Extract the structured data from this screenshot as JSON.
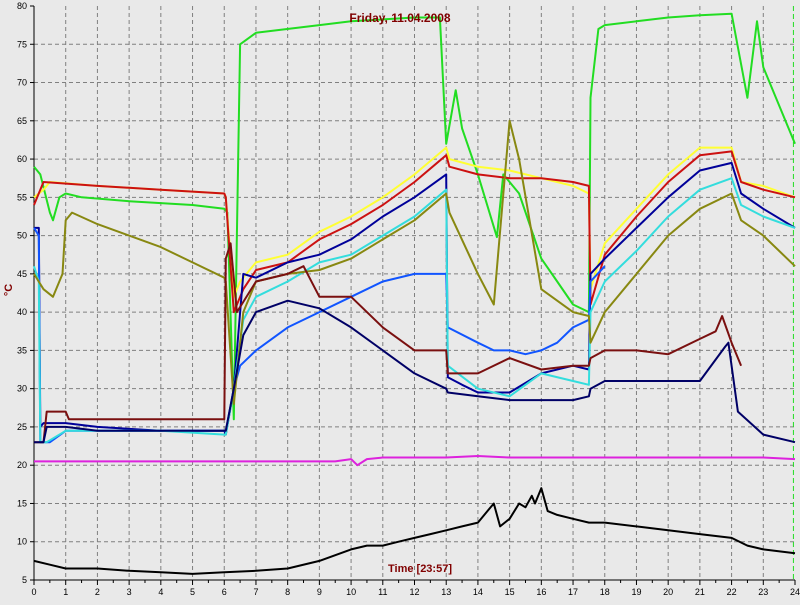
{
  "chart_data": {
    "type": "line",
    "title": "Friday, 11.04.2008",
    "xlabel": "Time [23:57]",
    "ylabel": "°C",
    "xlim": [
      0,
      24
    ],
    "ylim": [
      5,
      80
    ],
    "x_ticks": [
      "0",
      "1",
      "2",
      "3",
      "4",
      "5",
      "6",
      "7",
      "8",
      "9",
      "10",
      "11",
      "12",
      "13",
      "14",
      "15",
      "16",
      "17",
      "18",
      "19",
      "20",
      "21",
      "22",
      "23",
      "24"
    ],
    "y_ticks": [
      "5",
      "10",
      "15",
      "20",
      "25",
      "30",
      "35",
      "40",
      "45",
      "50",
      "55",
      "60",
      "65",
      "70",
      "75",
      "80"
    ],
    "grid": true,
    "grid_style": "dashed",
    "series": [
      {
        "color": "#22dd22",
        "x": [
          0,
          0.2,
          0.5,
          0.6,
          0.8,
          1,
          1.5,
          3,
          5,
          6,
          6.1,
          6.3,
          6.5,
          7,
          9,
          10,
          12,
          12.8,
          13,
          13.3,
          13.5,
          14,
          14.6,
          14.8,
          15,
          15.3,
          16,
          16.5,
          17,
          17.5,
          17.55,
          17.8,
          18,
          19,
          20,
          21,
          22,
          22.5,
          22.8,
          23,
          24
        ],
        "y": [
          59,
          58,
          53,
          52,
          55,
          55.5,
          55,
          54.5,
          54,
          53.5,
          53,
          26,
          75,
          76.5,
          77.5,
          78,
          78.5,
          78.5,
          62,
          69,
          64,
          58,
          49.8,
          58,
          57,
          55.5,
          47,
          44,
          41,
          40,
          68,
          77,
          77.5,
          78,
          78.5,
          78.8,
          79,
          68,
          78,
          72,
          62
        ]
      },
      {
        "color": "#ffff33",
        "x": [
          0,
          0.3,
          0.5,
          2,
          4,
          6,
          6.05,
          6.3,
          6.5,
          7,
          8,
          9,
          10,
          11,
          12,
          13,
          13.1,
          14,
          15,
          16,
          17,
          17.5,
          17.55,
          18,
          19,
          20,
          21,
          22,
          22.3,
          23,
          24
        ],
        "y": [
          55,
          56,
          57,
          56.5,
          56,
          55.5,
          55,
          42,
          44,
          46.5,
          47.5,
          50.5,
          52.5,
          55,
          58,
          61.5,
          60,
          59,
          58.5,
          57.5,
          56.5,
          55.5,
          43,
          49,
          53.5,
          58,
          61.5,
          61.5,
          57,
          56.5,
          55
        ]
      },
      {
        "color": "#cc1111",
        "x": [
          0,
          0.3,
          2,
          4,
          6,
          6.05,
          6.3,
          6.6,
          7,
          8,
          9,
          10,
          11,
          12,
          13,
          13.1,
          14,
          15,
          16,
          17,
          17.5,
          17.55,
          18,
          19,
          20,
          21,
          22,
          22.3,
          23,
          24
        ],
        "y": [
          54,
          57,
          56.5,
          56,
          55.5,
          55,
          40,
          43,
          45.5,
          46.5,
          49.5,
          51.5,
          54,
          57,
          60.5,
          59,
          58,
          57.5,
          57.5,
          57,
          56.5,
          41,
          47.5,
          52.5,
          57,
          60.5,
          61,
          57,
          56,
          55
        ]
      },
      {
        "color": "#000099",
        "x": [
          0,
          0.15,
          0.2,
          0.3,
          1,
          2,
          4,
          6,
          6.05,
          6.3,
          6.6,
          7,
          8,
          9,
          10,
          11,
          12,
          13,
          13.05,
          13.5,
          14,
          15,
          16,
          17,
          17.5,
          17.55,
          18,
          19,
          20,
          21,
          22,
          22.3,
          23,
          24
        ],
        "y": [
          51,
          51,
          25,
          25.5,
          25.5,
          25,
          24.5,
          24.5,
          24,
          30,
          45,
          44.5,
          46.5,
          47.5,
          49.5,
          52.5,
          55,
          58,
          31.5,
          30.5,
          29.5,
          29.5,
          32,
          33,
          32.5,
          45,
          47,
          51,
          55,
          58.5,
          59.5,
          55.5,
          53.5,
          51
        ]
      },
      {
        "color": "#1155ff",
        "x": [
          0,
          0.15,
          0.2,
          0.5,
          1,
          2,
          4,
          6,
          6.05,
          6.3,
          6.5,
          7,
          8,
          9,
          10,
          11,
          12,
          13,
          13.05,
          14,
          14.5,
          15,
          15.5,
          16,
          16.5,
          17,
          17.5,
          17.55,
          18
        ],
        "y": [
          51,
          50,
          23,
          23,
          24.5,
          24.5,
          24.5,
          24.5,
          24.5,
          30,
          33,
          35,
          38,
          40,
          42,
          44,
          45,
          45,
          38,
          36,
          35,
          35,
          34.5,
          35,
          36,
          38,
          39,
          44,
          46
        ]
      },
      {
        "color": "#33dddd",
        "x": [
          0,
          0.15,
          0.2,
          0.4,
          1,
          2,
          4,
          6,
          6.05,
          6.3,
          6.6,
          7,
          8,
          9,
          10,
          11,
          12,
          13,
          13.05,
          14,
          15,
          16,
          17,
          17.5,
          17.55,
          18,
          19,
          20,
          21,
          22,
          22.3,
          23,
          24
        ],
        "y": [
          46,
          44,
          23,
          23,
          24.5,
          24.5,
          24.5,
          24,
          24,
          30,
          39,
          42,
          44,
          46.5,
          47.5,
          50,
          52.5,
          56,
          33,
          30,
          29,
          32,
          31,
          30.5,
          40,
          44,
          48,
          52.5,
          56,
          57.5,
          54,
          52.5,
          51
        ]
      },
      {
        "color": "#888811",
        "x": [
          0,
          0.3,
          0.6,
          0.9,
          1,
          1.2,
          2,
          3,
          4,
          5,
          6,
          6.05,
          6.3,
          6.6,
          7,
          8,
          9,
          10,
          11,
          12,
          13,
          13.1,
          14,
          14.5,
          15,
          15.3,
          16,
          17,
          17.5,
          17.55,
          18,
          19,
          20,
          21,
          22,
          22.3,
          23,
          24
        ],
        "y": [
          45,
          43,
          42,
          45,
          52,
          53,
          51.5,
          50,
          48.5,
          46.5,
          44.5,
          44,
          28,
          40,
          44,
          45,
          45.5,
          47,
          49.5,
          52,
          55.5,
          53,
          45,
          41,
          65,
          60,
          43,
          40,
          39.5,
          36,
          40,
          45,
          50,
          53.5,
          55.5,
          52,
          50,
          46
        ]
      },
      {
        "color": "#7a1010",
        "x": [
          0,
          0.3,
          0.4,
          1,
          1.1,
          2,
          4,
          6,
          6.05,
          6.2,
          6.4,
          7,
          8,
          8.5,
          9,
          10,
          11,
          12,
          13,
          13.05,
          14,
          15,
          16,
          17,
          17.5,
          17.55,
          18,
          19,
          20,
          21,
          21.5,
          21.7,
          22,
          22.3
        ],
        "y": [
          23,
          23,
          27,
          27,
          26,
          26,
          26,
          26,
          47,
          49,
          40,
          44,
          45,
          46,
          42,
          42,
          38,
          35,
          35,
          32,
          32,
          34,
          32.5,
          33,
          33,
          34,
          35,
          35,
          34.5,
          36.5,
          37.5,
          39.5,
          36,
          33
        ]
      },
      {
        "color": "#000066",
        "x": [
          0,
          0.3,
          0.4,
          1,
          2,
          4,
          6,
          6.05,
          6.3,
          6.6,
          7,
          8,
          9,
          10,
          11,
          12,
          13,
          13.05,
          14,
          15,
          16,
          17,
          17.5,
          17.55,
          18,
          19,
          20,
          21,
          21.8,
          21.9,
          22.2,
          23,
          24
        ],
        "y": [
          23,
          23,
          25,
          25,
          24.5,
          24.5,
          24.5,
          24.5,
          30,
          37,
          40,
          41.5,
          40.5,
          38,
          35,
          32,
          30,
          29.5,
          29,
          28.5,
          28.5,
          28.5,
          29,
          30,
          31,
          31,
          31,
          31,
          35.5,
          36,
          27,
          24,
          23
        ]
      },
      {
        "color": "#dd22dd",
        "x": [
          0,
          1,
          2,
          4,
          6,
          7,
          8,
          9,
          9.5,
          10,
          10.2,
          10.5,
          11,
          12,
          13,
          14,
          15,
          16,
          17,
          18,
          19,
          20,
          21,
          22,
          23,
          24
        ],
        "y": [
          20.5,
          20.5,
          20.5,
          20.5,
          20.5,
          20.5,
          20.5,
          20.5,
          20.5,
          20.8,
          20,
          20.8,
          21,
          21,
          21,
          21.2,
          21,
          21,
          21,
          21,
          21,
          21,
          21,
          21,
          21,
          20.8
        ]
      },
      {
        "color": "#000000",
        "x": [
          0,
          0.5,
          1,
          2,
          3,
          4,
          5,
          6,
          7,
          8,
          9,
          10,
          10.5,
          11,
          11.5,
          12,
          12.5,
          13,
          13.5,
          14,
          14.3,
          14.5,
          14.7,
          15,
          15.3,
          15.5,
          15.7,
          15.8,
          16,
          16.2,
          16.5,
          17,
          17.5,
          18,
          19,
          20,
          21,
          22,
          22.5,
          23,
          24
        ],
        "y": [
          7.5,
          7,
          6.5,
          6.5,
          6.2,
          6,
          5.8,
          6,
          6.2,
          6.5,
          7.5,
          9,
          9.5,
          9.5,
          10,
          10.5,
          11,
          11.5,
          12,
          12.5,
          14,
          15,
          12,
          13,
          15,
          14.5,
          16,
          15,
          17,
          14,
          13.5,
          13,
          12.5,
          12.5,
          12,
          11.5,
          11,
          10.5,
          9.5,
          9,
          8.5
        ]
      }
    ],
    "vertical_marker": {
      "x": 23.95,
      "color": "#22dd22"
    }
  }
}
